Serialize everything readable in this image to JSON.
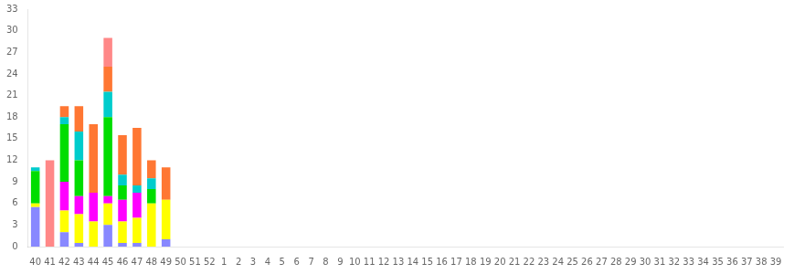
{
  "chart_data": {
    "type": "bar",
    "categories": [
      "40",
      "41",
      "42",
      "43",
      "44",
      "45",
      "46",
      "47",
      "48",
      "49",
      "50",
      "51",
      "52",
      "1",
      "2",
      "3",
      "4",
      "5",
      "6",
      "7",
      "8",
      "9",
      "10",
      "11",
      "12",
      "13",
      "14",
      "15",
      "16",
      "17",
      "18",
      "19",
      "20",
      "21",
      "22",
      "23",
      "24",
      "25",
      "26",
      "27",
      "28",
      "29",
      "30",
      "31",
      "32",
      "33",
      "34",
      "35",
      "36",
      "37",
      "38",
      "39"
    ],
    "series": [
      {
        "color": "#8888ff",
        "values": [
          5.5,
          0,
          2,
          0.5,
          0,
          3,
          0.5,
          0.5,
          0,
          1,
          0,
          0,
          0,
          0,
          0,
          0,
          0,
          0,
          0,
          0,
          0,
          0,
          0,
          0,
          0,
          0,
          0,
          0,
          0,
          0,
          0,
          0,
          0,
          0,
          0,
          0,
          0,
          0,
          0,
          0,
          0,
          0,
          0,
          0,
          0,
          0,
          0,
          0,
          0,
          0,
          0,
          0
        ]
      },
      {
        "color": "#ffff00",
        "values": [
          0.5,
          0,
          3,
          4,
          3.5,
          3,
          3,
          3.5,
          6,
          5.5,
          0,
          0,
          0,
          0,
          0,
          0,
          0,
          0,
          0,
          0,
          0,
          0,
          0,
          0,
          0,
          0,
          0,
          0,
          0,
          0,
          0,
          0,
          0,
          0,
          0,
          0,
          0,
          0,
          0,
          0,
          0,
          0,
          0,
          0,
          0,
          0,
          0,
          0,
          0,
          0,
          0,
          0
        ]
      },
      {
        "color": "#ff00ff",
        "values": [
          0,
          0,
          4,
          2.5,
          4,
          1,
          3,
          3.5,
          0,
          0,
          0,
          0,
          0,
          0,
          0,
          0,
          0,
          0,
          0,
          0,
          0,
          0,
          0,
          0,
          0,
          0,
          0,
          0,
          0,
          0,
          0,
          0,
          0,
          0,
          0,
          0,
          0,
          0,
          0,
          0,
          0,
          0,
          0,
          0,
          0,
          0,
          0,
          0,
          0,
          0,
          0,
          0
        ]
      },
      {
        "color": "#00dd00",
        "values": [
          4.5,
          0,
          8,
          5,
          0,
          11,
          2,
          0,
          2,
          0,
          0,
          0,
          0,
          0,
          0,
          0,
          0,
          0,
          0,
          0,
          0,
          0,
          0,
          0,
          0,
          0,
          0,
          0,
          0,
          0,
          0,
          0,
          0,
          0,
          0,
          0,
          0,
          0,
          0,
          0,
          0,
          0,
          0,
          0,
          0,
          0,
          0,
          0,
          0,
          0,
          0,
          0
        ]
      },
      {
        "color": "#00cccc",
        "values": [
          0.5,
          0,
          1,
          4,
          0,
          3.5,
          1.5,
          1,
          1.5,
          0,
          0,
          0,
          0,
          0,
          0,
          0,
          0,
          0,
          0,
          0,
          0,
          0,
          0,
          0,
          0,
          0,
          0,
          0,
          0,
          0,
          0,
          0,
          0,
          0,
          0,
          0,
          0,
          0,
          0,
          0,
          0,
          0,
          0,
          0,
          0,
          0,
          0,
          0,
          0,
          0,
          0,
          0
        ]
      },
      {
        "color": "#ff7733",
        "values": [
          0,
          0,
          1.5,
          3.5,
          9.5,
          3.5,
          5.5,
          8,
          2.5,
          4.5,
          0,
          0,
          0,
          0,
          0,
          0,
          0,
          0,
          0,
          0,
          0,
          0,
          0,
          0,
          0,
          0,
          0,
          0,
          0,
          0,
          0,
          0,
          0,
          0,
          0,
          0,
          0,
          0,
          0,
          0,
          0,
          0,
          0,
          0,
          0,
          0,
          0,
          0,
          0,
          0,
          0,
          0
        ]
      },
      {
        "color": "#ff8888",
        "values": [
          0,
          12,
          0,
          0,
          0,
          4,
          0,
          0,
          0,
          0,
          0,
          0,
          0,
          0,
          0,
          0,
          0,
          0,
          0,
          0,
          0,
          0,
          0,
          0,
          0,
          0,
          0,
          0,
          0,
          0,
          0,
          0,
          0,
          0,
          0,
          0,
          0,
          0,
          0,
          0,
          0,
          0,
          0,
          0,
          0,
          0,
          0,
          0,
          0,
          0,
          0,
          0
        ]
      }
    ],
    "stacked": true,
    "ylim": [
      0,
      33
    ],
    "yticks": [
      0,
      3,
      6,
      9,
      12,
      15,
      18,
      21,
      24,
      27,
      30,
      33
    ],
    "grid": false
  }
}
